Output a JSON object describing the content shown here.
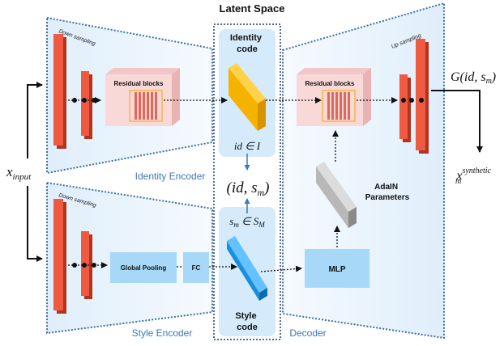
{
  "title": "Latent Space",
  "encoders": {
    "identity_label": "Identity Encoder",
    "style_label": "Style Encoder",
    "decoder_label": "Decoder"
  },
  "blocks": {
    "down_sampling_1": "Down sampling",
    "down_sampling_2": "Down sampling",
    "up_sampling": "Up sampling",
    "residual_blocks_enc": "Residual blocks",
    "residual_blocks_dec": "Residual blocks",
    "global_pooling": "Global Pooling",
    "fc": "FC",
    "mlp": "MLP"
  },
  "latent": {
    "identity_code": [
      "Identity",
      "code"
    ],
    "style_code": [
      "Style",
      "code"
    ],
    "id_in_I": "id ∈ I",
    "pair_open": "(id, s",
    "pair_sub": "m",
    "pair_close": ")",
    "sm_var": "s",
    "sm_sub": "m",
    "sm_in": " ∈ ",
    "sm_set": "S",
    "sm_set_sub": "M"
  },
  "adain": [
    "AdaIN",
    "Parameters"
  ],
  "io": {
    "input_var": "x",
    "input_sub": "input",
    "output_func": "G(id, s",
    "output_sub": "m",
    "output_close": ")",
    "synthetic_var": "x",
    "synthetic_sup": "synthetic",
    "synthetic_sub": "m"
  },
  "colors": {
    "red": "#f05a40",
    "red_dark": "#b03420",
    "yellow": "#f5b300",
    "blue": "#1a8fe0",
    "light_blue": "#a8d8f8",
    "panel_bg": "#e8f3fc",
    "border": "#3a6fa8",
    "pink": "#f9d8d8",
    "grey": "#b8b8b8"
  }
}
